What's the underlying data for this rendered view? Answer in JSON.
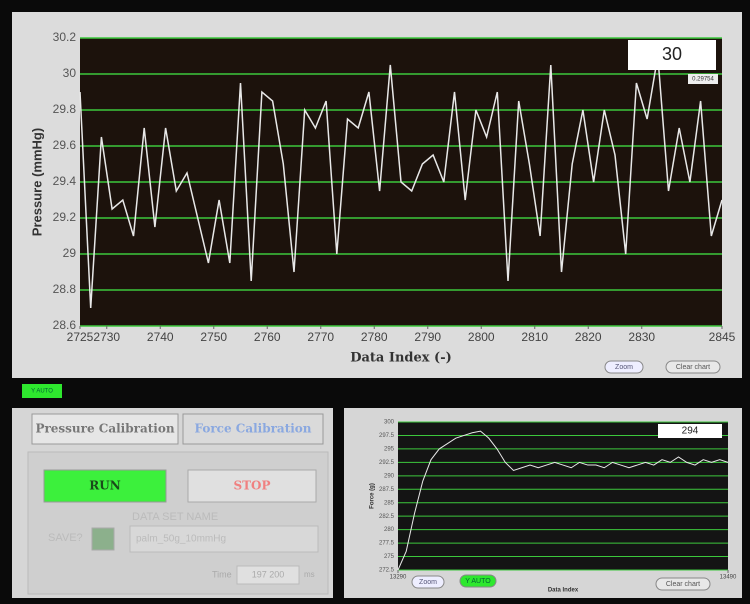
{
  "chart_data": [
    {
      "type": "line",
      "y_label": "Pressure (mmHg)",
      "x_label": "Data Index (-)",
      "display": "30",
      "cursor_label": "0.29754",
      "xlim": [
        2725,
        2845
      ],
      "ylim": [
        28.6,
        30.2
      ],
      "xticks": [
        2725,
        2730,
        2740,
        2750,
        2760,
        2770,
        2780,
        2790,
        2800,
        2810,
        2820,
        2830,
        2845
      ],
      "yticks": [
        28.6,
        28.8,
        29,
        29.2,
        29.4,
        29.6,
        29.8,
        30,
        30.2
      ],
      "grid": true,
      "grid_color": "#3cc83c",
      "x": [
        2725,
        2727,
        2729,
        2731,
        2733,
        2735,
        2737,
        2739,
        2741,
        2743,
        2745,
        2747,
        2749,
        2751,
        2753,
        2755,
        2757,
        2759,
        2761,
        2763,
        2765,
        2767,
        2769,
        2771,
        2773,
        2775,
        2777,
        2779,
        2781,
        2783,
        2785,
        2787,
        2789,
        2791,
        2793,
        2795,
        2797,
        2799,
        2801,
        2803,
        2805,
        2807,
        2809,
        2811,
        2813,
        2815,
        2817,
        2819,
        2821,
        2823,
        2825,
        2827,
        2829,
        2831,
        2833,
        2835,
        2837,
        2839,
        2841,
        2843,
        2845
      ],
      "series": [
        {
          "color": "#e8e8e8",
          "values": [
            29.9,
            28.7,
            29.65,
            29.25,
            29.3,
            29.1,
            29.7,
            29.15,
            29.7,
            29.35,
            29.45,
            29.2,
            28.95,
            29.3,
            28.95,
            29.95,
            28.85,
            29.9,
            29.85,
            29.5,
            28.9,
            29.8,
            29.7,
            29.85,
            29.0,
            29.75,
            29.7,
            29.9,
            29.35,
            30.05,
            29.4,
            29.35,
            29.5,
            29.55,
            29.4,
            29.9,
            29.3,
            29.8,
            29.65,
            29.9,
            28.85,
            29.85,
            29.5,
            29.1,
            30.05,
            28.9,
            29.5,
            29.8,
            29.4,
            29.8,
            29.55,
            29.0,
            29.95,
            29.75,
            30.1,
            29.35,
            29.7,
            29.4,
            29.85,
            29.1,
            29.3
          ]
        }
      ],
      "buttons": [
        "Zoom",
        "Clear chart",
        "Y AUTO"
      ]
    },
    {
      "type": "line",
      "y_label": "Force (g)",
      "x_label": "Data Index",
      "display": "294",
      "xlim": [
        13290,
        13490
      ],
      "ylim": [
        272.5,
        300
      ],
      "xticks": [
        13290,
        13490
      ],
      "yticks": [
        272.5,
        275,
        277.5,
        280,
        282.5,
        285,
        287.5,
        290,
        292.5,
        295,
        297.5,
        300
      ],
      "grid": true,
      "grid_color": "#3cc83c",
      "x": [
        13290,
        13295,
        13300,
        13305,
        13310,
        13315,
        13320,
        13325,
        13330,
        13335,
        13340,
        13345,
        13350,
        13355,
        13360,
        13365,
        13370,
        13375,
        13380,
        13385,
        13390,
        13395,
        13400,
        13405,
        13410,
        13415,
        13420,
        13425,
        13430,
        13435,
        13440,
        13445,
        13450,
        13455,
        13460,
        13465,
        13470,
        13475,
        13480,
        13485,
        13490
      ],
      "series": [
        {
          "color": "#e8e8e8",
          "values": [
            272.5,
            276,
            283,
            289,
            293,
            295,
            296,
            297,
            297.5,
            298,
            298.3,
            297,
            295,
            292.5,
            291,
            291.5,
            292,
            291.5,
            292,
            292.5,
            292,
            291.5,
            292.5,
            292,
            292,
            291.5,
            292.5,
            292,
            291.5,
            292,
            292.5,
            292,
            293,
            292.5,
            293.5,
            292.5,
            292,
            293,
            292.5,
            293,
            292.5
          ]
        }
      ],
      "buttons": [
        "Zoom",
        "Y AUTO",
        "Clear chart"
      ]
    }
  ],
  "top_panel": {
    "y_auto": "Y AUTO"
  },
  "calibration": {
    "tabs": [
      "Pressure Calibration",
      "Force Calibration"
    ],
    "run": "RUN",
    "stop": "STOP",
    "save": "SAVE?",
    "data_set_label": "DATA SET NAME",
    "data_set_name": "palm_50g_10mmHg",
    "time_label": "Time",
    "time_value": "197 200",
    "time_unit": "ms"
  }
}
